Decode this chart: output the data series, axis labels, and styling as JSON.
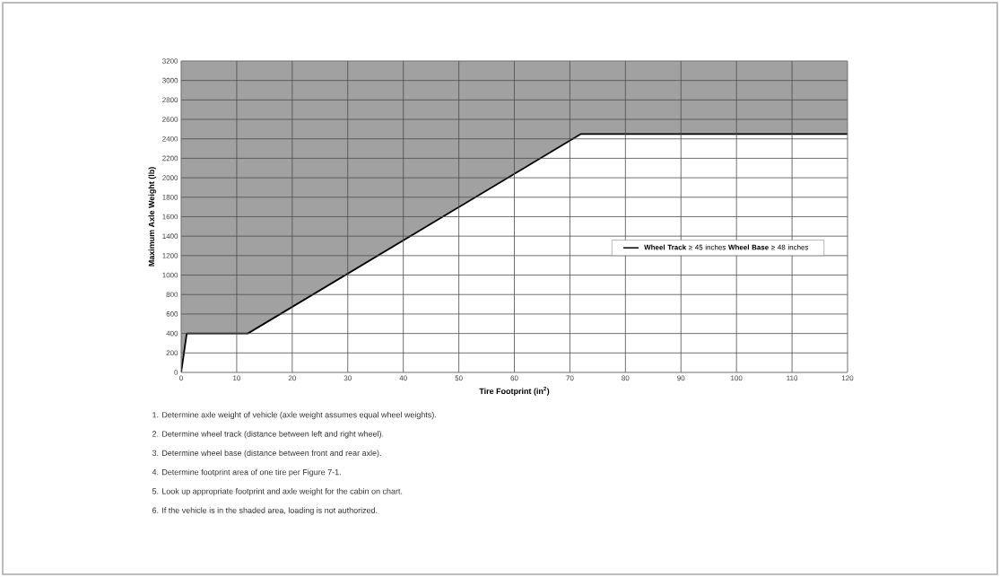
{
  "chart_data": {
    "type": "line",
    "xlabel": "**Tire Footprint (in$^{2}$)**",
    "ylabel": "**Maximum Axle Weight (lb)**",
    "x": [
      0,
      1,
      12,
      72,
      120
    ],
    "series": [
      {
        "name": "**Wheel Track** ≥ 45 inches **Wheel Base** ≥ 48 inches",
        "color": "#000000",
        "values": [
          0,
          400,
          400,
          2450,
          2450
        ],
        "lower": [
          0,
          400,
          400,
          2450,
          2450
        ],
        "upper": [
          3200,
          3200,
          3200,
          3200,
          3200
        ]
      }
    ],
    "xlim": [
      0,
      120
    ],
    "xticks": [
      0,
      10,
      20,
      30,
      40,
      50,
      60,
      70,
      80,
      90,
      100,
      110,
      120
    ],
    "ylim": [
      0,
      3200
    ],
    "yticks": [
      0,
      200,
      400,
      600,
      800,
      1000,
      1200,
      1400,
      1600,
      1800,
      2000,
      2200,
      2400,
      2600,
      2800,
      3000,
      3200
    ],
    "grid": true,
    "legend": "right",
    "line_style": "solid",
    "marker": "none",
    "annotations": [
      "1. Determine axle weight of vehicle (axle weight assumes equal wheel weights).",
      "2. Determine wheel track (distance between left and right wheel).",
      "3. Determine wheel base (distance between front and rear axle).",
      "4. Determine footprint area of one tire per Figure 7-1.",
      "5. Look up appropriate footprint and axle weight for the cabin on chart.",
      "6. If the vehicle is in the shaded area, loading is not authorized."
    ]
  }
}
